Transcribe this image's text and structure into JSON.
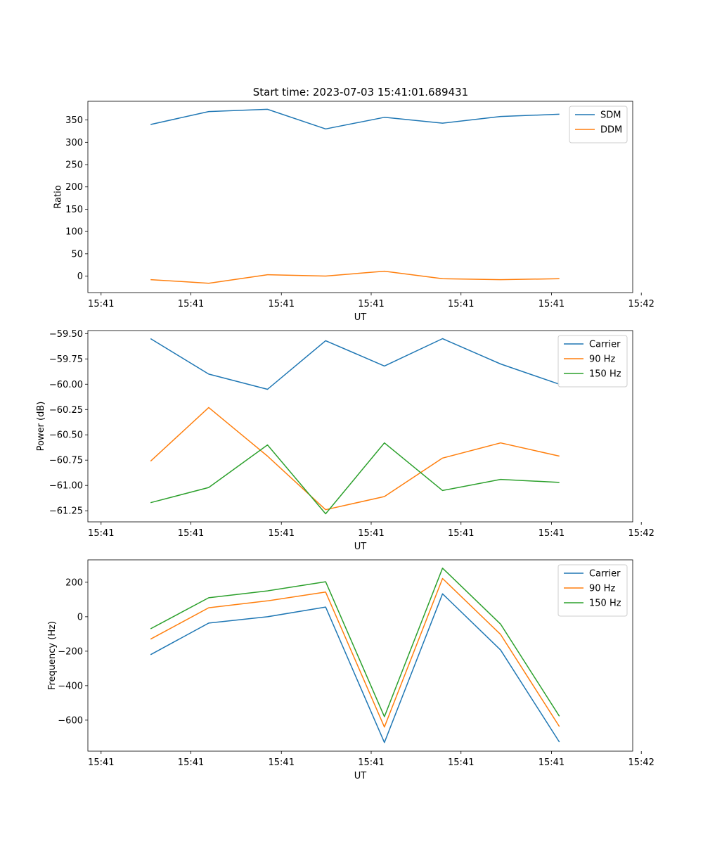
{
  "title": "Start time: 2023-07-03 15:41:01.689431",
  "colors": {
    "blue": "#1f77b4",
    "orange": "#ff7f0e",
    "green": "#2ca02c"
  },
  "chart_data": [
    {
      "type": "line",
      "x": [
        0.75,
        1.63,
        2.52,
        3.4,
        4.29,
        5.17,
        6.05,
        6.94
      ],
      "xlim": [
        -0.2,
        8.05
      ],
      "xticks": [
        0,
        1.36,
        2.73,
        4.09,
        5.45,
        6.82,
        8.18
      ],
      "xtick_labels": [
        "15:41",
        "15:41",
        "15:41",
        "15:41",
        "15:41",
        "15:41",
        "15:42"
      ],
      "xlabel": "UT",
      "ylabel": "Ratio",
      "ylim": [
        -37,
        392
      ],
      "yticks": [
        0,
        50,
        100,
        150,
        200,
        250,
        300,
        350
      ],
      "ytick_labels": [
        "0",
        "50",
        "100",
        "150",
        "200",
        "250",
        "300",
        "350"
      ],
      "legend": "top-right",
      "series": [
        {
          "name": "SDM",
          "color": "#1f77b4",
          "values": [
            340,
            369,
            374,
            330,
            356,
            343,
            358,
            363
          ]
        },
        {
          "name": "DDM",
          "color": "#ff7f0e",
          "values": [
            -8,
            -16,
            3,
            0,
            11,
            -6,
            -8,
            -6
          ]
        }
      ]
    },
    {
      "type": "line",
      "x": [
        0.75,
        1.63,
        2.52,
        3.4,
        4.29,
        5.17,
        6.05,
        6.94
      ],
      "xlim": [
        -0.2,
        8.05
      ],
      "xticks": [
        0,
        1.36,
        2.73,
        4.09,
        5.45,
        6.82,
        8.18
      ],
      "xtick_labels": [
        "15:41",
        "15:41",
        "15:41",
        "15:41",
        "15:41",
        "15:41",
        "15:42"
      ],
      "xlabel": "UT",
      "ylabel": "Power (dB)",
      "ylim": [
        -61.36,
        -59.47
      ],
      "yticks": [
        -59.5,
        -59.75,
        -60.0,
        -60.25,
        -60.5,
        -60.75,
        -61.0,
        -61.25
      ],
      "ytick_labels": [
        "−59.50",
        "−59.75",
        "−60.00",
        "−60.25",
        "−60.50",
        "−60.75",
        "−61.00",
        "−61.25"
      ],
      "legend": "top-right",
      "series": [
        {
          "name": "Carrier",
          "color": "#1f77b4",
          "values": [
            -59.55,
            -59.9,
            -60.05,
            -59.57,
            -59.82,
            -59.55,
            -59.8,
            -60.0
          ]
        },
        {
          "name": "90 Hz",
          "color": "#ff7f0e",
          "values": [
            -60.76,
            -60.23,
            -60.71,
            -61.24,
            -61.11,
            -60.73,
            -60.58,
            -60.71
          ]
        },
        {
          "name": "150 Hz",
          "color": "#2ca02c",
          "values": [
            -61.17,
            -61.02,
            -60.6,
            -61.28,
            -60.58,
            -61.05,
            -60.94,
            -60.97
          ]
        }
      ]
    },
    {
      "type": "line",
      "x": [
        0.75,
        1.63,
        2.52,
        3.4,
        4.29,
        5.17,
        6.05,
        6.94
      ],
      "xlim": [
        -0.2,
        8.05
      ],
      "xticks": [
        0,
        1.36,
        2.73,
        4.09,
        5.45,
        6.82,
        8.18
      ],
      "xtick_labels": [
        "15:41",
        "15:41",
        "15:41",
        "15:41",
        "15:41",
        "15:41",
        "15:42"
      ],
      "xlabel": "UT",
      "ylabel": "Frequency (Hz)",
      "ylim": [
        -780,
        330
      ],
      "yticks": [
        200,
        0,
        -200,
        -400,
        -600
      ],
      "ytick_labels": [
        "200",
        "0",
        "−200",
        "−400",
        "−600"
      ],
      "legend": "top-right",
      "series": [
        {
          "name": "Carrier",
          "color": "#1f77b4",
          "values": [
            -220,
            -37,
            0,
            56,
            -730,
            133,
            -193,
            -727
          ]
        },
        {
          "name": "90 Hz",
          "color": "#ff7f0e",
          "values": [
            -130,
            52,
            92,
            143,
            -640,
            222,
            -103,
            -637
          ]
        },
        {
          "name": "150 Hz",
          "color": "#2ca02c",
          "values": [
            -70,
            110,
            150,
            203,
            -580,
            282,
            -43,
            -577
          ]
        }
      ]
    }
  ]
}
